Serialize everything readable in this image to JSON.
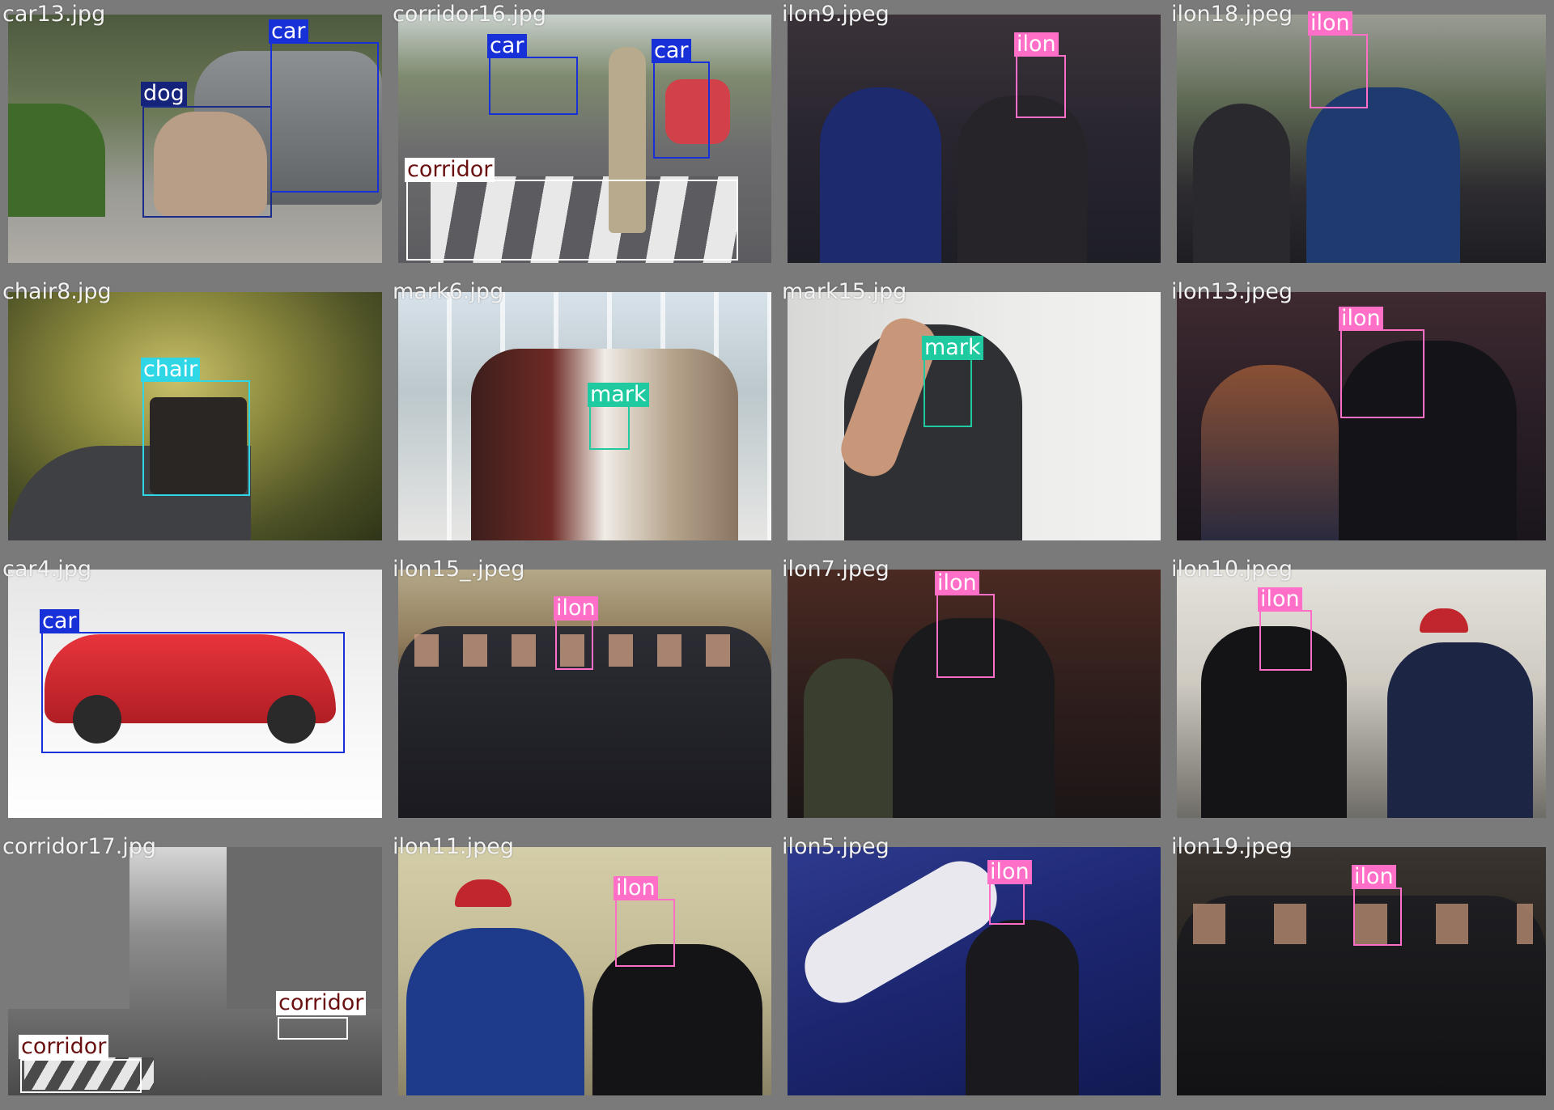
{
  "colors": {
    "tile_border": "#7a7a7a",
    "car": "#1730d8",
    "dog": "#16237a",
    "chair": "#2fd6e6",
    "mark": "#20caa0",
    "ilon": "#ff6ec7",
    "corridor": "#ffffff"
  },
  "tiles": [
    {
      "filename": "car13.jpg",
      "labels": [
        "dog",
        "car"
      ]
    },
    {
      "filename": "corridor16.jpg",
      "labels": [
        "car",
        "car",
        "corridor"
      ]
    },
    {
      "filename": "ilon9.jpeg",
      "labels": [
        "ilon"
      ]
    },
    {
      "filename": "ilon18.jpeg",
      "labels": [
        "ilon"
      ]
    },
    {
      "filename": "chair8.jpg",
      "labels": [
        "chair"
      ]
    },
    {
      "filename": "mark6.jpg",
      "labels": [
        "mark"
      ]
    },
    {
      "filename": "mark15.jpg",
      "labels": [
        "mark"
      ]
    },
    {
      "filename": "ilon13.jpeg",
      "labels": [
        "ilon"
      ]
    },
    {
      "filename": "car4.jpg",
      "labels": [
        "car"
      ]
    },
    {
      "filename": "ilon15_.jpeg",
      "labels": [
        "ilon"
      ]
    },
    {
      "filename": "ilon7.jpeg",
      "labels": [
        "ilon"
      ]
    },
    {
      "filename": "ilon10.jpeg",
      "labels": [
        "ilon"
      ]
    },
    {
      "filename": "corridor17.jpg",
      "labels": [
        "corridor",
        "corridor"
      ]
    },
    {
      "filename": "ilon11.jpeg",
      "labels": [
        "ilon"
      ]
    },
    {
      "filename": "ilon5.jpeg",
      "labels": [
        "ilon"
      ]
    },
    {
      "filename": "ilon19.jpeg",
      "labels": [
        "ilon"
      ]
    }
  ]
}
